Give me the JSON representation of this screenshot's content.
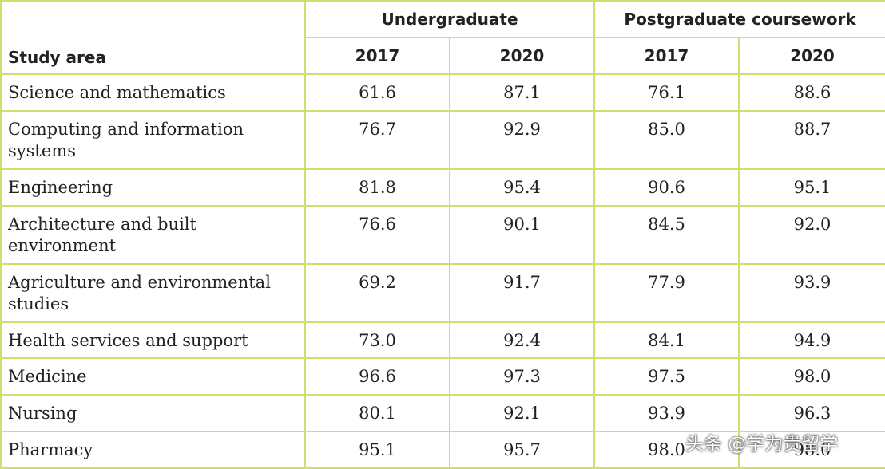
{
  "header": {
    "study_area": "Study area",
    "groups": [
      "Undergraduate",
      "Postgraduate coursework"
    ],
    "years": [
      "2017",
      "2020",
      "2017",
      "2020"
    ]
  },
  "table": {
    "rows": [
      [
        "Science and mathematics",
        "61.6",
        "87.1",
        "76.1",
        "88.6"
      ],
      [
        "Computing and information systems",
        "76.7",
        "92.9",
        "85.0",
        "88.7"
      ],
      [
        "Engineering",
        "81.8",
        "95.4",
        "90.6",
        "95.1"
      ],
      [
        "Architecture and built environment",
        "76.6",
        "90.1",
        "84.5",
        "92.0"
      ],
      [
        "Agriculture and environmental studies",
        "69.2",
        "91.7",
        "77.9",
        "93.9"
      ],
      [
        "Health services and support",
        "73.0",
        "92.4",
        "84.1",
        "94.9"
      ],
      [
        "Medicine",
        "96.6",
        "97.3",
        "97.5",
        "98.0"
      ],
      [
        "Nursing",
        "80.1",
        "92.1",
        "93.9",
        "96.3"
      ],
      [
        "Pharmacy",
        "95.1",
        "95.7",
        "98.0",
        "98.0"
      ]
    ]
  },
  "watermark": "头条 @学为贵留学"
}
